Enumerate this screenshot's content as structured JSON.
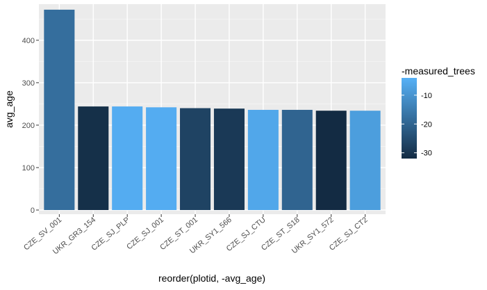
{
  "chart_data": {
    "type": "bar",
    "title": "",
    "xlabel": "reorder(plotid, -avg_age)",
    "ylabel": "avg_age",
    "categories": [
      "CZE_SV_001",
      "UKR_GR3_154",
      "CZE_SJ_PLP",
      "CZE_SJ_001",
      "CZE_ST_001",
      "UKR_SY1_566",
      "CZE_SJ_CTU",
      "CZE_ST_S18",
      "UKR_SY1_572",
      "CZE_SJ_CT2"
    ],
    "values": [
      472,
      244,
      244,
      242,
      240,
      239,
      236,
      236,
      234,
      234
    ],
    "fill_values": [
      -18,
      -31,
      -5,
      -5,
      -27,
      -29,
      -6,
      -20,
      -32,
      -8
    ],
    "ylim": [
      0,
      485
    ],
    "yticks": [
      0,
      100,
      200,
      300,
      400
    ],
    "grid": true,
    "legend": {
      "title": "-measured_trees",
      "position": "right",
      "range": [
        -32,
        -4
      ],
      "ticks": [
        -10,
        -20,
        -30
      ],
      "color_low": "#132b43",
      "color_high": "#56b1f7"
    }
  }
}
